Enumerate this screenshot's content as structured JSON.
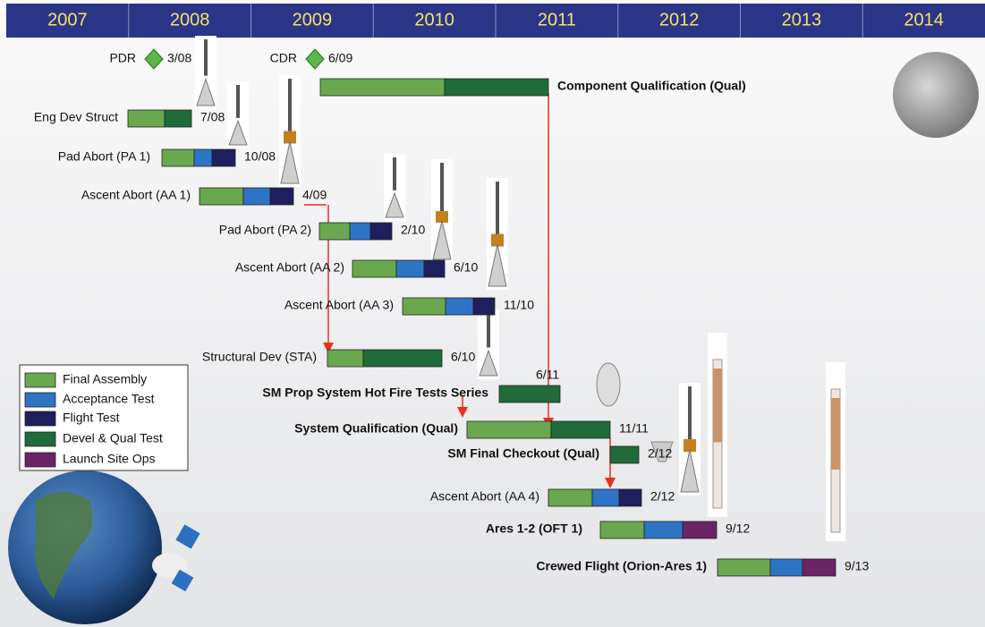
{
  "header": {
    "years": [
      "2007",
      "2008",
      "2009",
      "2010",
      "2011",
      "2012",
      "2013",
      "2014"
    ]
  },
  "milestones": [
    {
      "label": "PDR",
      "date": "3/08"
    },
    {
      "label": "CDR",
      "date": "6/09"
    }
  ],
  "tasks": [
    {
      "label": "Component Qualification (Qual)"
    },
    {
      "label": "Eng Dev Struct",
      "date": "7/08"
    },
    {
      "label": "Pad Abort (PA 1)",
      "date": "10/08"
    },
    {
      "label": "Ascent Abort  (AA 1)",
      "date": "4/09"
    },
    {
      "label": "Pad Abort (PA 2)",
      "date": "2/10"
    },
    {
      "label": "Ascent Abort (AA 2)",
      "date": "6/10"
    },
    {
      "label": "Ascent Abort (AA 3)",
      "date": "11/10"
    },
    {
      "label": "Structural Dev (STA)",
      "date": "6/10"
    },
    {
      "label": "SM Prop System Hot Fire Tests Series",
      "date": "6/11"
    },
    {
      "label": "System Qualification (Qual)",
      "date": "11/11"
    },
    {
      "label": "SM Final Checkout (Qual)",
      "date": "2/12"
    },
    {
      "label": "Ascent Abort (AA 4)",
      "date": "2/12"
    },
    {
      "label": "Ares 1-2 (OFT 1)",
      "date": "9/12"
    },
    {
      "label": "Crewed Flight (Orion-Ares 1)",
      "date": "9/13"
    }
  ],
  "legend": [
    "Final Assembly",
    "Acceptance Test",
    "Flight Test",
    "Devel & Qual Test",
    "Launch Site Ops"
  ]
}
